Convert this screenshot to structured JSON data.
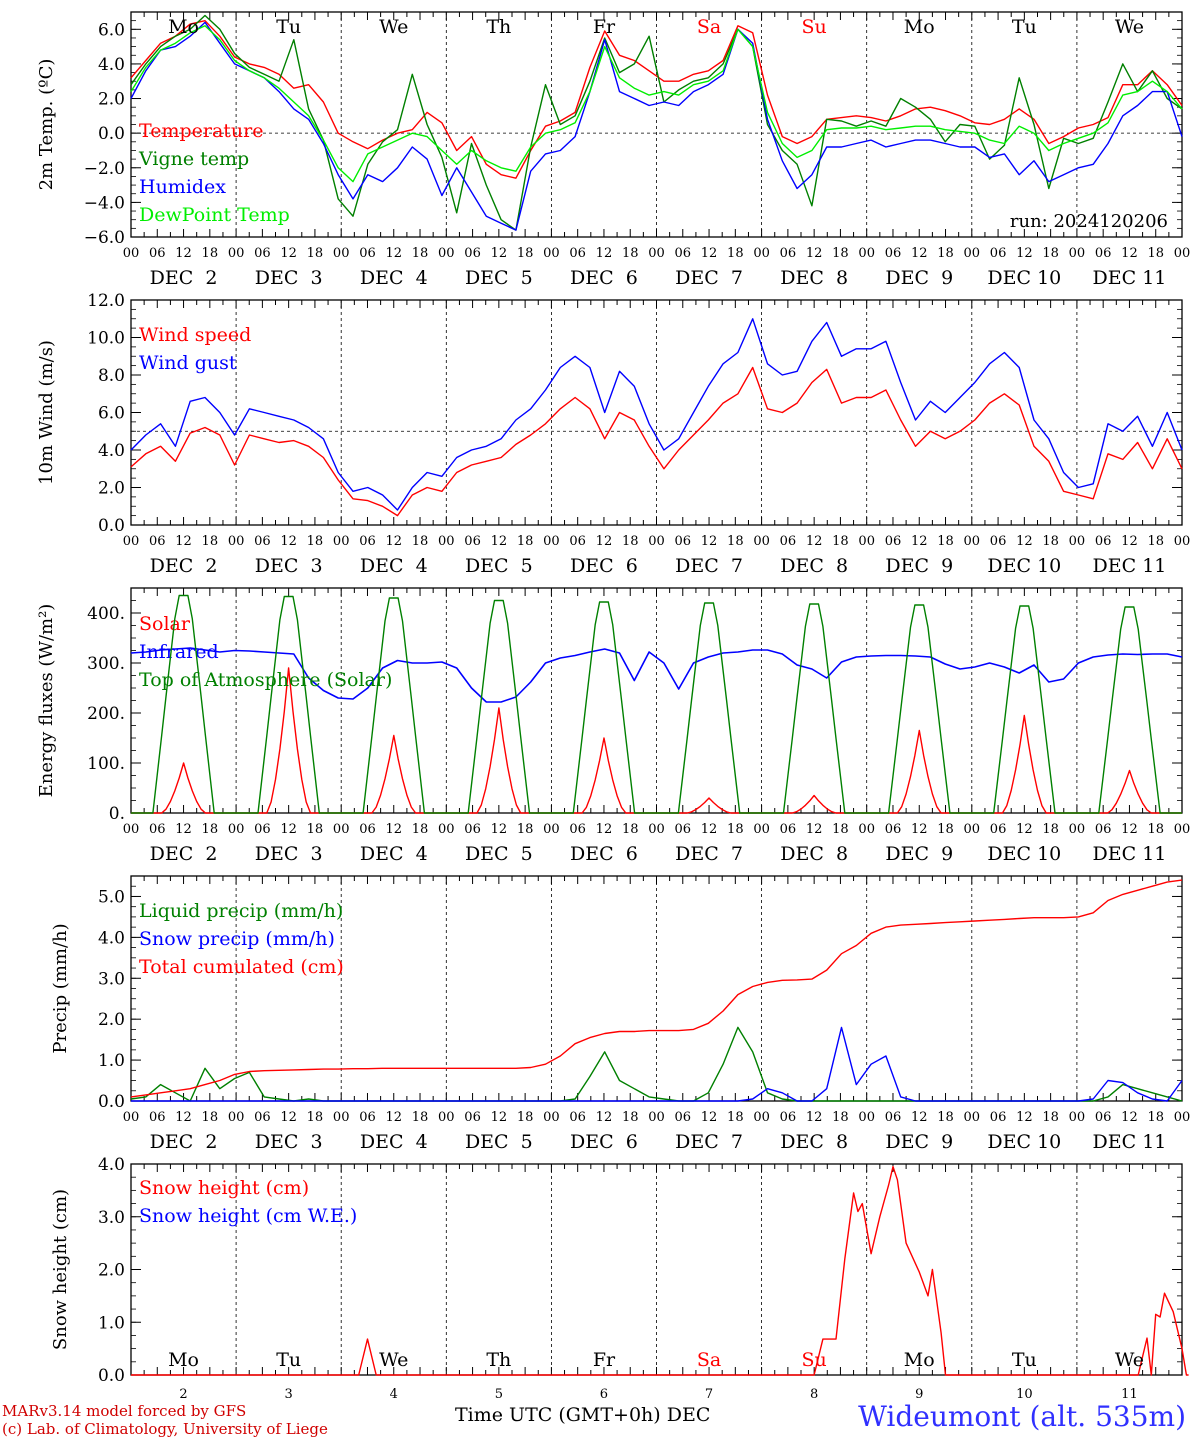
{
  "chart_data": [
    {
      "type": "line",
      "ylabel": "2m Temp. (ºC)",
      "ylim": [
        -6,
        7
      ],
      "yticks": [
        "6.0",
        "4.0",
        "2.0",
        "0.0",
        "−2.0",
        "−4.0",
        "−6.0"
      ],
      "ytick_values": [
        6,
        4,
        2,
        0,
        -2,
        -4,
        -6
      ],
      "hline": 0,
      "annotation": "run: 2024120206",
      "series": [
        {
          "name": "Temperature",
          "color": "#ff0000",
          "values": [
            3.2,
            4.2,
            5.2,
            5.6,
            6.3,
            6.5,
            5.6,
            4.4,
            4.0,
            3.8,
            3.4,
            2.6,
            2.8,
            1.8,
            0.0,
            -0.5,
            -0.9,
            -0.4,
            0.0,
            0.2,
            1.2,
            0.6,
            -1.0,
            -0.2,
            -1.8,
            -2.4,
            -2.6,
            -1.0,
            0.4,
            0.7,
            1.2,
            3.8,
            5.9,
            4.5,
            4.2,
            3.6,
            3.0,
            3.0,
            3.4,
            3.6,
            4.2,
            6.2,
            5.8,
            2.2,
            -0.2,
            -0.6,
            -0.2,
            0.8,
            0.9,
            1.0,
            0.9,
            0.7,
            1.0,
            1.4,
            1.5,
            1.3,
            1.0,
            0.6,
            0.5,
            0.8,
            1.4,
            0.8,
            -0.6,
            -0.2,
            0.3,
            0.5,
            0.9,
            2.8,
            2.8,
            3.6,
            2.8,
            1.6
          ]
        },
        {
          "name": "Vigne temp",
          "color": "#008000",
          "values": [
            2.8,
            4.0,
            5.0,
            5.6,
            6.0,
            6.8,
            6.0,
            4.6,
            3.8,
            3.4,
            3.0,
            5.4,
            1.4,
            -0.4,
            -3.8,
            -4.8,
            -1.8,
            -0.5,
            0.2,
            3.4,
            0.5,
            -1.4,
            -4.6,
            -0.6,
            -3.0,
            -5.0,
            -5.6,
            -0.8,
            2.8,
            0.5,
            1.0,
            3.0,
            5.5,
            3.5,
            4.0,
            5.6,
            1.8,
            2.5,
            3.0,
            3.2,
            4.0,
            6.0,
            5.0,
            0.5,
            -1.0,
            -1.8,
            -4.2,
            0.8,
            0.7,
            0.4,
            0.7,
            0.4,
            2.0,
            1.5,
            0.8,
            -0.5,
            0.5,
            0.4,
            -1.5,
            -0.7,
            3.2,
            0.5,
            -3.2,
            -0.3,
            -0.6,
            -0.3,
            1.8,
            4.0,
            2.4,
            3.6,
            2.0,
            1.4
          ]
        },
        {
          "name": "Humidex",
          "color": "#0000ff",
          "values": [
            2.0,
            3.6,
            4.8,
            5.0,
            5.6,
            6.4,
            5.2,
            4.0,
            3.6,
            3.2,
            2.4,
            1.4,
            0.8,
            -0.6,
            -2.4,
            -3.8,
            -2.4,
            -2.8,
            -2.0,
            -0.8,
            -1.5,
            -3.6,
            -2.0,
            -3.4,
            -4.8,
            -5.2,
            -5.6,
            -2.2,
            -1.2,
            -1.0,
            -0.2,
            2.4,
            5.4,
            2.4,
            2.0,
            1.6,
            1.8,
            1.6,
            2.4,
            2.8,
            3.4,
            6.0,
            5.2,
            0.8,
            -1.6,
            -3.2,
            -2.4,
            -0.8,
            -0.8,
            -0.6,
            -0.4,
            -0.8,
            -0.6,
            -0.4,
            -0.4,
            -0.6,
            -0.8,
            -0.8,
            -1.4,
            -1.2,
            -2.4,
            -1.6,
            -2.8,
            -2.4,
            -2.0,
            -1.8,
            -0.6,
            1.0,
            1.6,
            2.4,
            2.4,
            -0.2
          ]
        },
        {
          "name": "DewPoint Temp",
          "color": "#00ee00",
          "values": [
            2.4,
            3.8,
            4.8,
            5.2,
            5.8,
            6.2,
            5.4,
            4.2,
            3.6,
            3.2,
            2.6,
            1.8,
            1.0,
            -0.4,
            -2.0,
            -2.8,
            -1.2,
            -0.8,
            -0.4,
            0.0,
            -0.2,
            -1.0,
            -1.8,
            -1.0,
            -1.6,
            -2.0,
            -2.2,
            -0.8,
            0.0,
            0.2,
            0.6,
            2.4,
            5.0,
            3.2,
            2.6,
            2.2,
            2.4,
            2.2,
            2.8,
            3.0,
            3.6,
            6.0,
            5.0,
            1.2,
            -0.6,
            -1.4,
            -1.0,
            0.2,
            0.3,
            0.3,
            0.4,
            0.2,
            0.3,
            0.4,
            0.4,
            0.2,
            0.1,
            0.0,
            -0.4,
            -0.6,
            0.4,
            0.0,
            -1.0,
            -0.6,
            -0.3,
            0.0,
            0.6,
            2.2,
            2.4,
            3.0,
            2.4,
            1.4
          ]
        }
      ]
    },
    {
      "type": "line",
      "ylabel": "10m Wind (m/s)",
      "ylim": [
        0,
        12
      ],
      "yticks": [
        "12.0",
        "10.0",
        "8.0",
        "6.0",
        "4.0",
        "2.0",
        "0.0"
      ],
      "ytick_values": [
        12,
        10,
        8,
        6,
        4,
        2,
        0
      ],
      "hline": 5,
      "series": [
        {
          "name": "Wind speed",
          "color": "#ff0000",
          "values": [
            3.1,
            3.8,
            4.2,
            3.4,
            4.9,
            5.2,
            4.8,
            3.2,
            4.8,
            4.6,
            4.4,
            4.5,
            4.2,
            3.6,
            2.4,
            1.4,
            1.3,
            1.0,
            0.5,
            1.6,
            2.0,
            1.8,
            2.8,
            3.2,
            3.4,
            3.6,
            4.3,
            4.8,
            5.4,
            6.2,
            6.8,
            6.2,
            4.6,
            6.0,
            5.6,
            4.2,
            3.0,
            4.0,
            4.8,
            5.6,
            6.5,
            7.0,
            8.4,
            6.2,
            6.0,
            6.5,
            7.6,
            8.3,
            6.5,
            6.8,
            6.8,
            7.2,
            5.6,
            4.2,
            5.0,
            4.6,
            5.0,
            5.6,
            6.5,
            7.0,
            6.4,
            4.2,
            3.4,
            1.8,
            1.6,
            1.4,
            3.8,
            3.5,
            4.4,
            3.0,
            4.6,
            3.0
          ]
        },
        {
          "name": "Wind gust",
          "color": "#0000ff",
          "values": [
            4.0,
            4.8,
            5.4,
            4.2,
            6.6,
            6.8,
            6.0,
            4.8,
            6.2,
            6.0,
            5.8,
            5.6,
            5.2,
            4.6,
            2.8,
            1.8,
            2.0,
            1.6,
            0.8,
            2.0,
            2.8,
            2.6,
            3.6,
            4.0,
            4.2,
            4.6,
            5.6,
            6.2,
            7.2,
            8.4,
            9.0,
            8.4,
            6.0,
            8.2,
            7.4,
            5.4,
            4.0,
            4.6,
            6.0,
            7.4,
            8.6,
            9.2,
            11.0,
            8.6,
            8.0,
            8.2,
            9.8,
            10.8,
            9.0,
            9.4,
            9.4,
            9.8,
            7.6,
            5.6,
            6.6,
            6.0,
            6.8,
            7.6,
            8.6,
            9.2,
            8.4,
            5.6,
            4.6,
            2.8,
            2.0,
            2.2,
            5.4,
            5.0,
            5.8,
            4.2,
            6.0,
            4.0
          ]
        }
      ]
    },
    {
      "type": "line",
      "ylabel": "Energy fluxes (W/m²)",
      "ylim": [
        0,
        450
      ],
      "yticks": [
        "400.",
        "300.",
        "200.",
        "100.",
        "0."
      ],
      "ytick_values": [
        400,
        300,
        200,
        100,
        0
      ],
      "series": [
        {
          "name": "Solar",
          "color": "#ff0000",
          "peaks": [
            100,
            290,
            155,
            210,
            150,
            30,
            35,
            165,
            195,
            85
          ]
        },
        {
          "name": "Infrared",
          "color": "#0000ff",
          "values": [
            320,
            322,
            326,
            328,
            330,
            326,
            322,
            325,
            324,
            322,
            320,
            318,
            270,
            245,
            230,
            228,
            250,
            290,
            305,
            300,
            300,
            302,
            290,
            250,
            222,
            222,
            232,
            262,
            300,
            310,
            315,
            322,
            328,
            320,
            265,
            322,
            300,
            248,
            300,
            312,
            320,
            322,
            326,
            326,
            318,
            296,
            288,
            270,
            302,
            312,
            314,
            315,
            315,
            314,
            312,
            298,
            288,
            292,
            300,
            292,
            280,
            296,
            262,
            268,
            300,
            312,
            316,
            318,
            317,
            318,
            318,
            312
          ]
        },
        {
          "name": "Top of Atmosphere (Solar)",
          "color": "#008000",
          "peaks": [
            435,
            433,
            430,
            425,
            422,
            420,
            418,
            416,
            414,
            412
          ]
        }
      ]
    },
    {
      "type": "line",
      "ylabel": "Precip (mm/h)",
      "ylim": [
        0,
        5.5
      ],
      "yticks": [
        "5.0",
        "4.0",
        "3.0",
        "2.0",
        "1.0",
        "0.0"
      ],
      "ytick_values": [
        5,
        4,
        3,
        2,
        1,
        0
      ],
      "series": [
        {
          "name": "Liquid precip (mm/h)",
          "color": "#008000",
          "values": [
            0.05,
            0.1,
            0.4,
            0.2,
            0.0,
            0.8,
            0.3,
            0.55,
            0.7,
            0.1,
            0.05,
            0.0,
            0.05,
            0.0,
            0.0,
            0.0,
            0.0,
            0.0,
            0.0,
            0.0,
            0.0,
            0.0,
            0.0,
            0.0,
            0.0,
            0.0,
            0.0,
            0.0,
            0.0,
            0.0,
            0.05,
            0.6,
            1.2,
            0.5,
            0.3,
            0.1,
            0.05,
            0.0,
            0.0,
            0.2,
            0.9,
            1.8,
            1.2,
            0.2,
            0.05,
            0.0,
            0.0,
            0.0,
            0.0,
            0.0,
            0.0,
            0.0,
            0.0,
            0.0,
            0.0,
            0.0,
            0.0,
            0.0,
            0.0,
            0.0,
            0.0,
            0.0,
            0.0,
            0.0,
            0.0,
            0.0,
            0.1,
            0.4,
            0.3,
            0.2,
            0.1,
            0.0
          ]
        },
        {
          "name": "Snow precip (mm/h)",
          "color": "#0000ff",
          "values": [
            0.0,
            0.0,
            0.0,
            0.0,
            0.0,
            0.0,
            0.0,
            0.0,
            0.0,
            0.0,
            0.0,
            0.0,
            0.0,
            0.0,
            0.0,
            0.0,
            0.0,
            0.0,
            0.0,
            0.0,
            0.0,
            0.0,
            0.0,
            0.0,
            0.0,
            0.0,
            0.0,
            0.0,
            0.0,
            0.0,
            0.0,
            0.0,
            0.0,
            0.0,
            0.0,
            0.0,
            0.0,
            0.0,
            0.0,
            0.0,
            0.0,
            0.0,
            0.05,
            0.3,
            0.2,
            0.0,
            0.0,
            0.3,
            1.8,
            0.4,
            0.9,
            1.1,
            0.1,
            0.0,
            0.0,
            0.0,
            0.0,
            0.0,
            0.0,
            0.0,
            0.0,
            0.0,
            0.0,
            0.0,
            0.0,
            0.05,
            0.5,
            0.45,
            0.2,
            0.05,
            0.0,
            0.5
          ]
        },
        {
          "name": "Total cumulated (cm)",
          "color": "#ff0000",
          "values": [
            0.1,
            0.15,
            0.2,
            0.25,
            0.3,
            0.4,
            0.5,
            0.65,
            0.72,
            0.74,
            0.75,
            0.76,
            0.77,
            0.78,
            0.78,
            0.79,
            0.79,
            0.8,
            0.8,
            0.8,
            0.8,
            0.8,
            0.8,
            0.8,
            0.8,
            0.8,
            0.8,
            0.82,
            0.9,
            1.1,
            1.4,
            1.55,
            1.65,
            1.7,
            1.7,
            1.72,
            1.72,
            1.72,
            1.75,
            1.9,
            2.2,
            2.6,
            2.8,
            2.9,
            2.95,
            2.96,
            2.98,
            3.2,
            3.6,
            3.8,
            4.1,
            4.25,
            4.3,
            4.32,
            4.34,
            4.36,
            4.38,
            4.4,
            4.42,
            4.44,
            4.46,
            4.48,
            4.48,
            4.48,
            4.5,
            4.6,
            4.9,
            5.05,
            5.15,
            5.25,
            5.35,
            5.4
          ]
        }
      ]
    },
    {
      "type": "line",
      "ylabel": "Snow height (cm)",
      "ylim": [
        0,
        4
      ],
      "yticks": [
        "4.0",
        "3.0",
        "2.0",
        "1.0",
        "0.0"
      ],
      "ytick_values": [
        4,
        3,
        2,
        1,
        0
      ],
      "xlabel": "Time UTC (GMT+0h)",
      "xunit": "DEC",
      "series": [
        {
          "name": "Snow height (cm)",
          "color": "#ff0000",
          "points": [
            [
              0,
              0
            ],
            [
              52,
              0
            ],
            [
              54,
              0.68
            ],
            [
              56,
              0
            ],
            [
              156,
              0
            ],
            [
              158,
              0.68
            ],
            [
              161,
              0.68
            ],
            [
              163,
              2.2
            ],
            [
              165,
              3.45
            ],
            [
              166,
              3.1
            ],
            [
              167,
              3.25
            ],
            [
              169,
              2.3
            ],
            [
              171,
              3.0
            ],
            [
              173,
              3.6
            ],
            [
              174,
              3.95
            ],
            [
              175,
              3.7
            ],
            [
              177,
              2.5
            ],
            [
              180,
              1.95
            ],
            [
              182,
              1.5
            ],
            [
              183,
              2.0
            ],
            [
              185,
              0.8
            ],
            [
              186,
              0
            ],
            [
              230,
              0
            ],
            [
              232,
              0.7
            ],
            [
              233,
              0
            ],
            [
              234,
              1.15
            ],
            [
              235,
              1.1
            ],
            [
              236,
              1.55
            ],
            [
              238,
              1.2
            ],
            [
              240,
              0.5
            ],
            [
              241,
              0
            ],
            [
              241.5,
              0
            ]
          ]
        },
        {
          "name": "Snow height (cm W.E.)",
          "color": "#0000ff",
          "points": []
        }
      ]
    }
  ],
  "axis": {
    "hour_labels": [
      "00",
      "06",
      "12",
      "18"
    ],
    "final_hour_label": "00",
    "date_labels": [
      "DEC  2",
      "DEC  3",
      "DEC  4",
      "DEC  5",
      "DEC  6",
      "DEC  7",
      "DEC  8",
      "DEC  9",
      "DEC 10",
      "DEC 11"
    ],
    "top_days": [
      "Mo",
      "Tu",
      "We",
      "Th",
      "Fr",
      "Sa",
      "Su",
      "Mo",
      "Tu",
      "We"
    ],
    "day_numbers": [
      "2",
      "3",
      "4",
      "5",
      "6",
      "7",
      "8",
      "9",
      "10",
      "11"
    ],
    "weekend_color": "#ff0000"
  },
  "footer": {
    "model_line": "MARv3.14 model forced by GFS",
    "lab_line": "(c) Lab. of Climatology, University of Liege",
    "station": "Wideumont (alt. 535m)"
  }
}
